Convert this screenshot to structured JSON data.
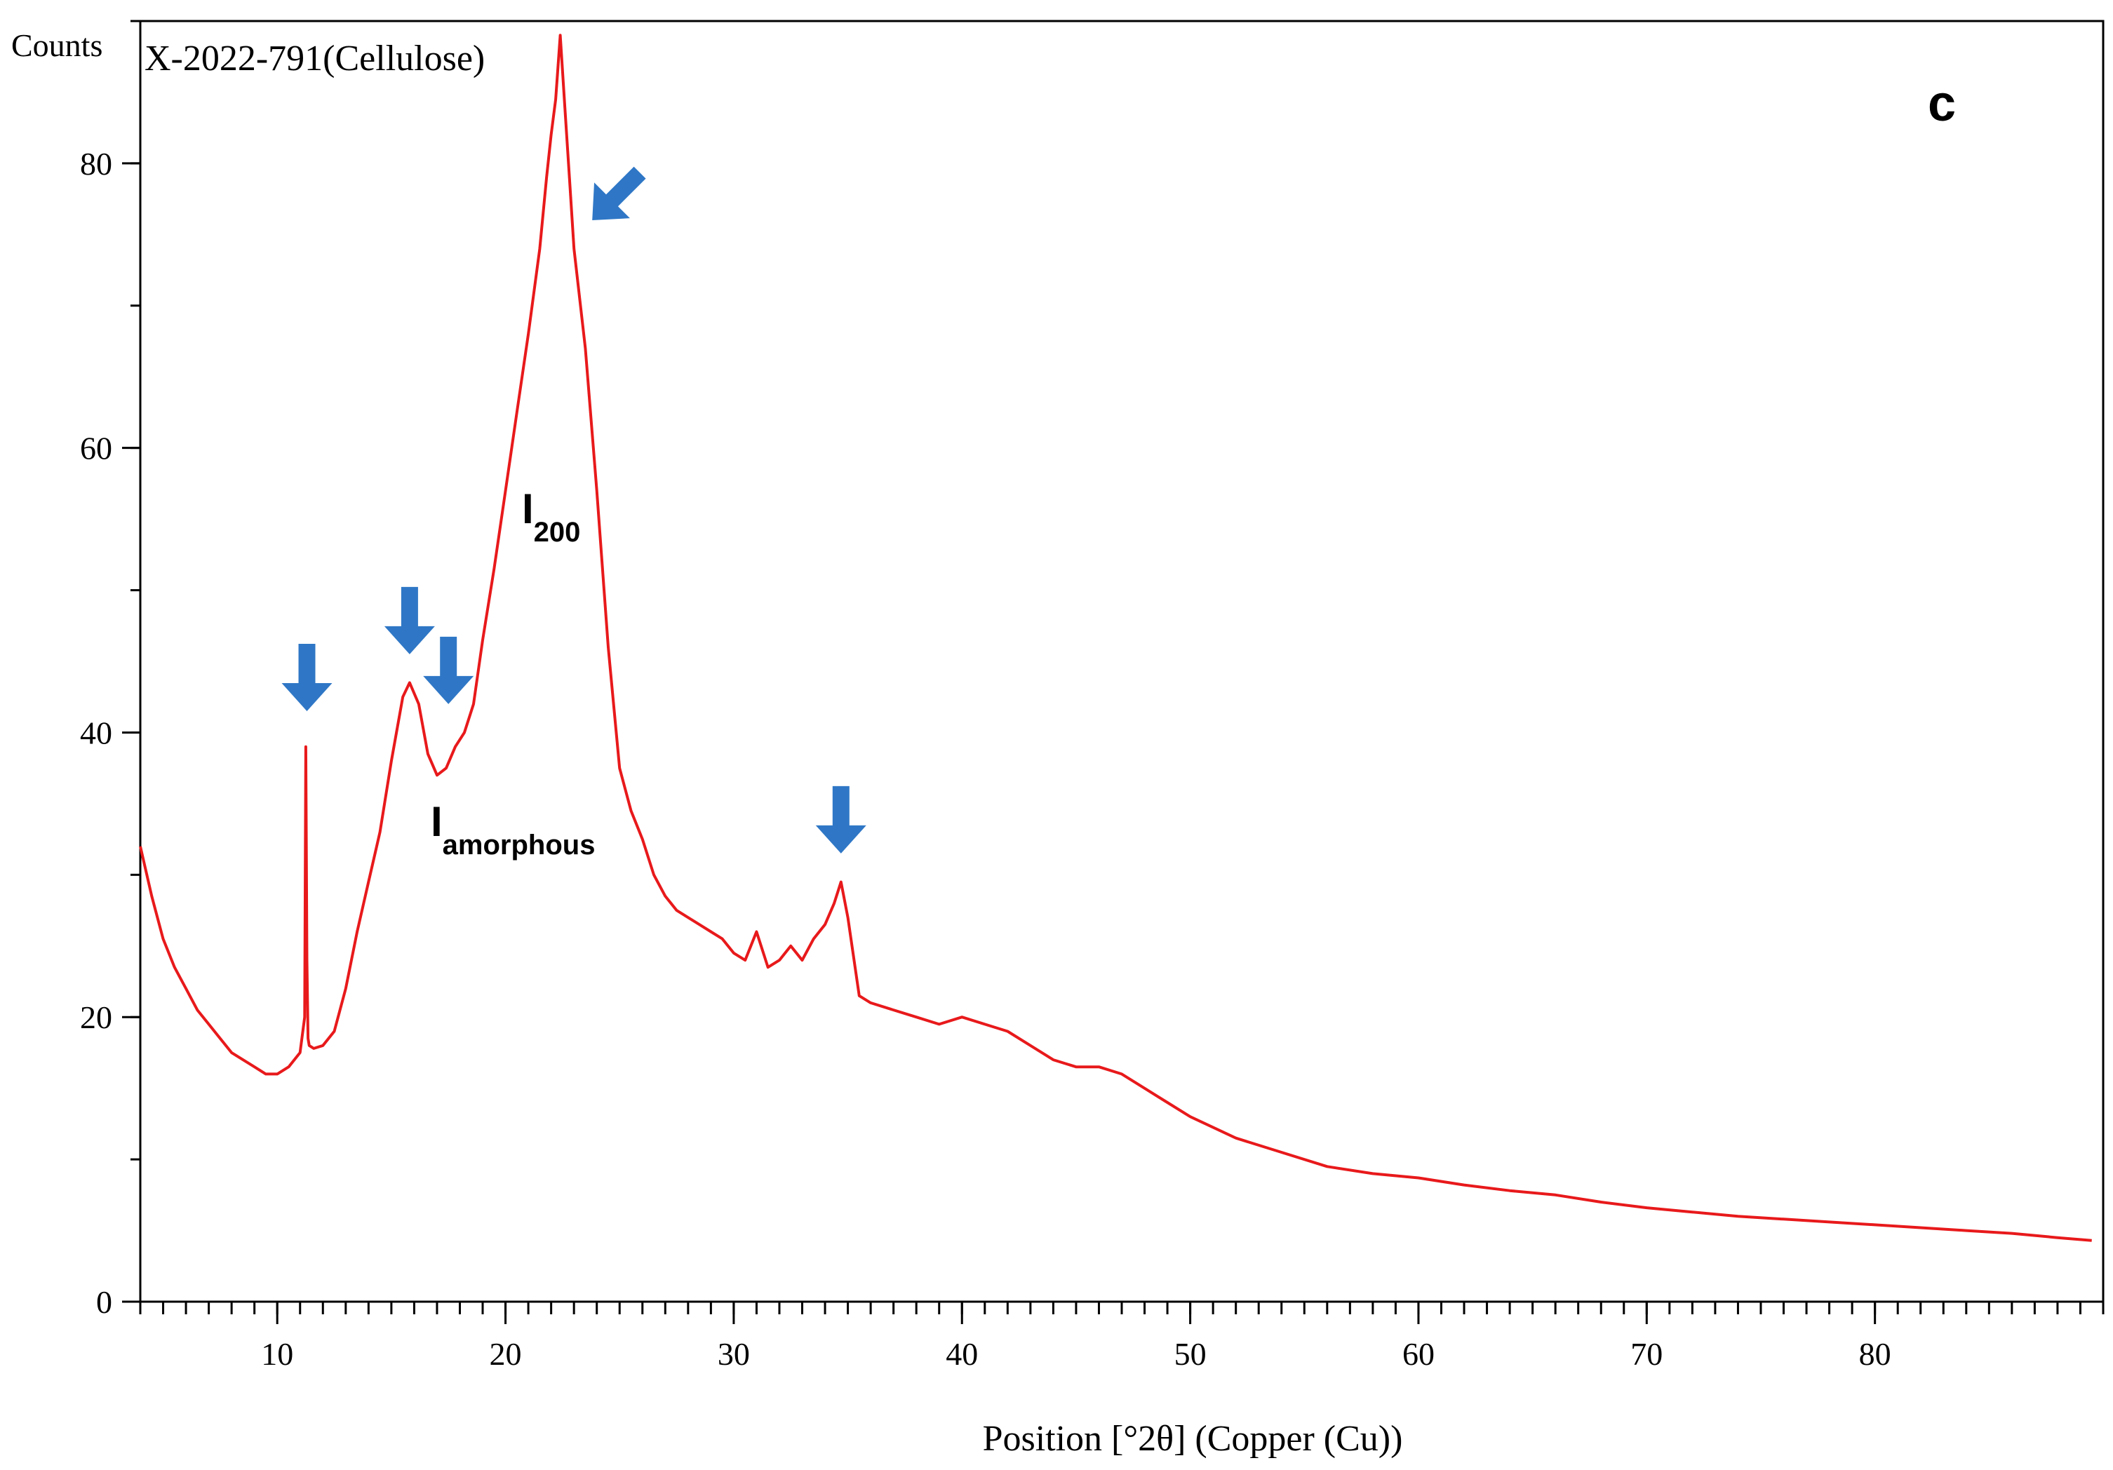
{
  "chart_data": {
    "type": "line",
    "title": "X-2022-791(Cellulose)",
    "panel_label": "c",
    "xlabel": "Position [°2θ] (Copper (Cu))",
    "ylabel": "Counts",
    "xlim": [
      4,
      90
    ],
    "ylim": [
      0,
      90
    ],
    "x_ticks": [
      10,
      20,
      30,
      40,
      50,
      60,
      70,
      80
    ],
    "y_ticks": [
      0,
      20,
      40,
      60,
      80
    ],
    "x_tick_labels": [
      "10",
      "20",
      "30",
      "40",
      "50",
      "60",
      "70",
      "80"
    ],
    "y_tick_labels": [
      "0",
      "20",
      "40",
      "60",
      "80"
    ],
    "grid": false,
    "series_color": "#e8191b",
    "arrow_color": "#2f77c6",
    "series": [
      {
        "x": [
          4.0,
          4.5,
          5.0,
          5.5,
          6.0,
          6.5,
          7.0,
          7.5,
          8.0,
          8.5,
          9.0,
          9.5,
          10.0,
          10.5,
          11.0,
          11.2,
          11.25,
          11.3,
          11.35,
          11.4,
          11.6,
          12.0,
          12.5,
          13.0,
          13.5,
          14.0,
          14.5,
          15.0,
          15.5,
          15.8,
          16.2,
          16.6,
          17.0,
          17.4,
          17.8,
          18.2,
          18.6,
          19.0,
          19.5,
          20.0,
          20.5,
          21.0,
          21.5,
          21.8,
          22.0,
          22.2,
          22.4,
          22.6,
          22.8,
          23.0,
          23.5,
          24.0,
          24.5,
          25.0,
          25.5,
          26.0,
          26.5,
          27.0,
          27.5,
          28.0,
          28.5,
          29.0,
          29.5,
          30.0,
          30.5,
          31.0,
          31.5,
          32.0,
          32.5,
          33.0,
          33.5,
          34.0,
          34.4,
          34.7,
          35.0,
          35.5,
          36.0,
          37.0,
          38.0,
          39.0,
          40.0,
          41.0,
          42.0,
          43.0,
          44.0,
          45.0,
          46.0,
          47.0,
          48.0,
          49.0,
          50.0,
          52.0,
          54.0,
          56.0,
          58.0,
          60.0,
          62.0,
          64.0,
          66.0,
          68.0,
          70.0,
          72.0,
          74.0,
          76.0,
          78.0,
          80.0,
          82.0,
          84.0,
          86.0,
          88.0,
          89.5
        ],
        "y": [
          32.0,
          28.5,
          25.5,
          23.5,
          22.0,
          20.5,
          19.5,
          18.5,
          17.5,
          17.0,
          16.5,
          16.0,
          16.0,
          16.5,
          17.5,
          20.0,
          39.0,
          24.0,
          18.5,
          18.0,
          17.8,
          18.0,
          19.0,
          22.0,
          26.0,
          29.5,
          33.0,
          38.0,
          42.5,
          43.5,
          42.0,
          38.5,
          37.0,
          37.5,
          39.0,
          40.0,
          42.0,
          46.5,
          51.5,
          57.0,
          62.5,
          68.0,
          74.0,
          79.0,
          82.0,
          84.5,
          89.0,
          84.0,
          79.0,
          74.0,
          67.0,
          57.0,
          46.0,
          37.5,
          34.5,
          32.5,
          30.0,
          28.5,
          27.5,
          27.0,
          26.5,
          26.0,
          25.5,
          24.5,
          24.0,
          26.0,
          23.5,
          24.0,
          25.0,
          24.0,
          25.5,
          26.5,
          28.0,
          29.5,
          27.0,
          21.5,
          21.0,
          20.5,
          20.0,
          19.5,
          20.0,
          19.5,
          19.0,
          18.0,
          17.0,
          16.5,
          16.5,
          16.0,
          15.0,
          14.0,
          13.0,
          11.5,
          10.5,
          9.5,
          9.0,
          8.7,
          8.2,
          7.8,
          7.5,
          7.0,
          6.6,
          6.3,
          6.0,
          5.8,
          5.6,
          5.4,
          5.2,
          5.0,
          4.8,
          4.5,
          4.3
        ]
      }
    ],
    "annotations": {
      "i200_main": "I",
      "i200_sub": "200",
      "iam_main": "I",
      "iam_sub": "amorphous"
    },
    "arrows": [
      {
        "x": 11.3,
        "y": 41.5,
        "dir": "down"
      },
      {
        "x": 15.8,
        "y": 45.5,
        "dir": "down"
      },
      {
        "x": 17.5,
        "y": 42.0,
        "dir": "down"
      },
      {
        "x": 34.7,
        "y": 31.5,
        "dir": "down"
      },
      {
        "x": 23.8,
        "y": 76.0,
        "dir": "down-left"
      }
    ]
  }
}
